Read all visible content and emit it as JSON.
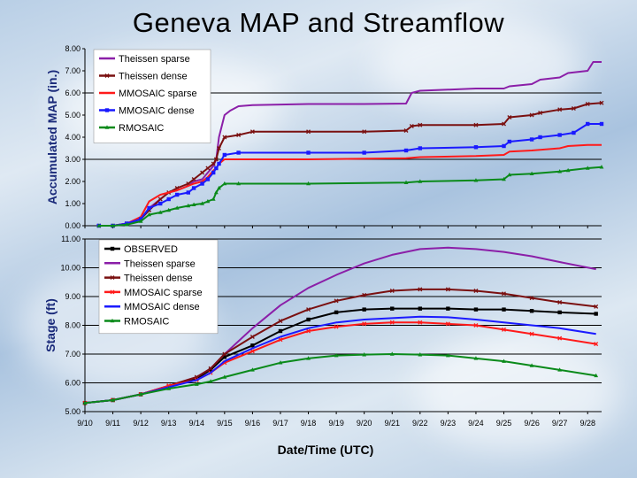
{
  "title": "Geneva MAP and Streamflow",
  "colors": {
    "theissen_sparse": "#8b1fa8",
    "theissen_dense": "#7a1010",
    "mmosaic_sparse": "#ff1a1a",
    "mmosaic_dense": "#1a1aff",
    "rmosaic": "#0a8a1a",
    "observed": "#000000"
  },
  "chart_data": [
    {
      "type": "line",
      "ylabel": "Accumulated MAP (in.)",
      "ylim": [
        0,
        8
      ],
      "y_ticks": [
        "0.00",
        "1.00",
        "2.00",
        "3.00",
        "4.00",
        "5.00",
        "6.00",
        "7.00",
        "8.00"
      ],
      "gridlines_at": [
        3,
        6
      ],
      "x_range": [
        0,
        18.5
      ],
      "legend": [
        "Theissen sparse",
        "Theissen dense",
        "MMOSAIC sparse",
        "MMOSAIC dense",
        "RMOSAIC"
      ],
      "series": [
        {
          "name": "Theissen sparse",
          "color_key": "theissen_sparse",
          "marker": "none",
          "x": [
            0.5,
            1,
            1.5,
            2,
            2.3,
            2.7,
            3,
            3.3,
            3.7,
            3.9,
            4.2,
            4.4,
            4.6,
            4.7,
            4.8,
            5,
            5.2,
            5.5,
            6,
            8,
            10,
            11.5,
            11.7,
            12,
            13,
            14,
            15,
            15.2,
            16,
            16.3,
            17,
            17.3,
            18,
            18.2,
            18.5
          ],
          "y": [
            0,
            0,
            0.1,
            0.3,
            0.8,
            1.2,
            1.5,
            1.6,
            1.8,
            2.0,
            2.1,
            2.4,
            2.7,
            3.0,
            4.0,
            5.0,
            5.2,
            5.4,
            5.45,
            5.5,
            5.5,
            5.52,
            6.0,
            6.1,
            6.15,
            6.2,
            6.2,
            6.3,
            6.4,
            6.6,
            6.7,
            6.9,
            7.0,
            7.4,
            7.4
          ]
        },
        {
          "name": "Theissen dense",
          "color_key": "theissen_dense",
          "marker": "x",
          "x": [
            0.5,
            1,
            1.5,
            2,
            2.3,
            2.7,
            3,
            3.3,
            3.7,
            3.9,
            4.2,
            4.4,
            4.6,
            4.7,
            4.8,
            5,
            5.5,
            6,
            8,
            10,
            11.5,
            11.7,
            12,
            14,
            15,
            15.2,
            16,
            16.3,
            17,
            17.5,
            18,
            18.5
          ],
          "y": [
            0,
            0,
            0.1,
            0.3,
            0.7,
            1.2,
            1.5,
            1.7,
            1.9,
            2.1,
            2.4,
            2.6,
            2.8,
            3.0,
            3.5,
            4.0,
            4.1,
            4.25,
            4.25,
            4.25,
            4.3,
            4.5,
            4.55,
            4.55,
            4.6,
            4.9,
            5.0,
            5.1,
            5.25,
            5.3,
            5.5,
            5.55
          ]
        },
        {
          "name": "MMOSAIC sparse",
          "color_key": "mmosaic_sparse",
          "marker": "none",
          "x": [
            0.5,
            1,
            1.5,
            2,
            2.3,
            2.7,
            3,
            3.3,
            3.7,
            3.9,
            4.2,
            4.4,
            4.6,
            4.7,
            4.8,
            5,
            5.5,
            8,
            11.5,
            12,
            14,
            15,
            15.2,
            16,
            17,
            17.3,
            18,
            18.5
          ],
          "y": [
            0,
            0,
            0.1,
            0.4,
            1.1,
            1.4,
            1.5,
            1.6,
            1.8,
            1.9,
            2.0,
            2.2,
            2.5,
            2.6,
            2.8,
            3.0,
            3.0,
            3.0,
            3.05,
            3.1,
            3.15,
            3.2,
            3.35,
            3.4,
            3.5,
            3.6,
            3.65,
            3.65
          ]
        },
        {
          "name": "MMOSAIC dense",
          "color_key": "mmosaic_dense",
          "marker": "square",
          "x": [
            0.5,
            1,
            1.5,
            2,
            2.3,
            2.7,
            3,
            3.3,
            3.7,
            3.9,
            4.2,
            4.4,
            4.6,
            4.7,
            4.8,
            5,
            5.5,
            8,
            10,
            11.5,
            12,
            14,
            15,
            15.2,
            16,
            16.3,
            17,
            17.5,
            18,
            18.5
          ],
          "y": [
            0,
            0,
            0.1,
            0.3,
            0.8,
            1.0,
            1.2,
            1.4,
            1.5,
            1.7,
            1.9,
            2.1,
            2.4,
            2.6,
            2.8,
            3.2,
            3.3,
            3.3,
            3.3,
            3.4,
            3.5,
            3.55,
            3.6,
            3.8,
            3.9,
            4.0,
            4.1,
            4.2,
            4.6,
            4.6
          ]
        },
        {
          "name": "RMOSAIC",
          "color_key": "rmosaic",
          "marker": "triangle",
          "x": [
            0.5,
            1,
            1.5,
            2,
            2.3,
            2.7,
            3,
            3.3,
            3.7,
            3.9,
            4.2,
            4.4,
            4.6,
            4.7,
            4.8,
            5,
            5.5,
            8,
            11.5,
            12,
            14,
            15,
            15.2,
            16,
            17,
            17.3,
            18,
            18.5
          ],
          "y": [
            0,
            0,
            0.05,
            0.2,
            0.5,
            0.6,
            0.7,
            0.8,
            0.9,
            0.95,
            1.0,
            1.1,
            1.2,
            1.5,
            1.7,
            1.9,
            1.9,
            1.9,
            1.95,
            2.0,
            2.05,
            2.1,
            2.3,
            2.35,
            2.45,
            2.5,
            2.6,
            2.65
          ]
        }
      ]
    },
    {
      "type": "line",
      "ylabel": "Stage (ft)",
      "xlabel": "Date/Time (UTC)",
      "ylim": [
        5,
        11
      ],
      "y_ticks": [
        "5.00",
        "6.00",
        "7.00",
        "8.00",
        "9.00",
        "10.00",
        "11.00"
      ],
      "gridlines_at": [
        6,
        7,
        8,
        9,
        10
      ],
      "x_range": [
        0,
        18.5
      ],
      "categories": [
        "9/10",
        "9/11",
        "9/12",
        "9/13",
        "9/14",
        "9/15",
        "9/16",
        "9/17",
        "9/18",
        "9/19",
        "9/20",
        "9/21",
        "9/22",
        "9/23",
        "9/24",
        "9/25",
        "9/26",
        "9/27",
        "9/28"
      ],
      "legend": [
        "OBSERVED",
        "Theissen sparse",
        "Theissen dense",
        "MMOSAIC sparse",
        "MMOSAIC dense",
        "RMOSAIC"
      ],
      "series": [
        {
          "name": "OBSERVED",
          "color_key": "observed",
          "marker": "square",
          "x": [
            0,
            1,
            2,
            3,
            4,
            4.5,
            5,
            6,
            7,
            8,
            9,
            10,
            11,
            12,
            13,
            14,
            15,
            16,
            17,
            18.3
          ],
          "y": [
            5.3,
            5.4,
            5.6,
            5.85,
            6.15,
            6.45,
            6.9,
            7.3,
            7.8,
            8.2,
            8.45,
            8.55,
            8.58,
            8.58,
            8.58,
            8.55,
            8.55,
            8.5,
            8.45,
            8.4
          ]
        },
        {
          "name": "Theissen sparse",
          "color_key": "theissen_sparse",
          "marker": "none",
          "x": [
            0,
            1,
            2,
            3,
            4,
            4.5,
            5,
            6,
            7,
            8,
            9,
            10,
            11,
            12,
            13,
            14,
            15,
            16,
            17,
            18.3
          ],
          "y": [
            5.3,
            5.4,
            5.6,
            5.9,
            6.2,
            6.5,
            7.0,
            7.9,
            8.7,
            9.3,
            9.75,
            10.15,
            10.45,
            10.65,
            10.7,
            10.65,
            10.55,
            10.4,
            10.2,
            9.95
          ]
        },
        {
          "name": "Theissen dense",
          "color_key": "theissen_dense",
          "marker": "x",
          "x": [
            0,
            1,
            2,
            3,
            4,
            4.5,
            5,
            6,
            7,
            8,
            9,
            10,
            11,
            12,
            13,
            14,
            15,
            16,
            17,
            18.3
          ],
          "y": [
            5.3,
            5.4,
            5.6,
            5.9,
            6.2,
            6.5,
            7.0,
            7.6,
            8.15,
            8.55,
            8.85,
            9.05,
            9.2,
            9.25,
            9.25,
            9.2,
            9.1,
            8.95,
            8.8,
            8.65
          ]
        },
        {
          "name": "MMOSAIC sparse",
          "color_key": "mmosaic_sparse",
          "marker": "x",
          "x": [
            0,
            1,
            2,
            3,
            4,
            4.5,
            5,
            6,
            7,
            8,
            9,
            10,
            11,
            12,
            13,
            14,
            15,
            16,
            17,
            18.3
          ],
          "y": [
            5.3,
            5.4,
            5.6,
            5.9,
            6.1,
            6.35,
            6.7,
            7.1,
            7.5,
            7.8,
            7.95,
            8.05,
            8.1,
            8.1,
            8.05,
            8.0,
            7.85,
            7.7,
            7.55,
            7.35
          ]
        },
        {
          "name": "MMOSAIC dense",
          "color_key": "mmosaic_dense",
          "marker": "none",
          "x": [
            0,
            1,
            2,
            3,
            4,
            4.5,
            5,
            6,
            7,
            8,
            9,
            10,
            11,
            12,
            13,
            14,
            15,
            16,
            17,
            18.3
          ],
          "y": [
            5.3,
            5.4,
            5.6,
            5.85,
            6.1,
            6.35,
            6.75,
            7.2,
            7.6,
            7.9,
            8.1,
            8.2,
            8.25,
            8.3,
            8.28,
            8.2,
            8.1,
            8.0,
            7.9,
            7.7
          ]
        },
        {
          "name": "RMOSAIC",
          "color_key": "rmosaic",
          "marker": "triangle",
          "x": [
            0,
            1,
            2,
            3,
            4,
            4.5,
            5,
            6,
            7,
            8,
            9,
            10,
            11,
            12,
            13,
            14,
            15,
            16,
            17,
            18.3
          ],
          "y": [
            5.3,
            5.4,
            5.6,
            5.8,
            5.95,
            6.05,
            6.2,
            6.45,
            6.7,
            6.85,
            6.95,
            6.98,
            7.0,
            6.98,
            6.95,
            6.85,
            6.75,
            6.6,
            6.45,
            6.25
          ]
        }
      ]
    }
  ]
}
